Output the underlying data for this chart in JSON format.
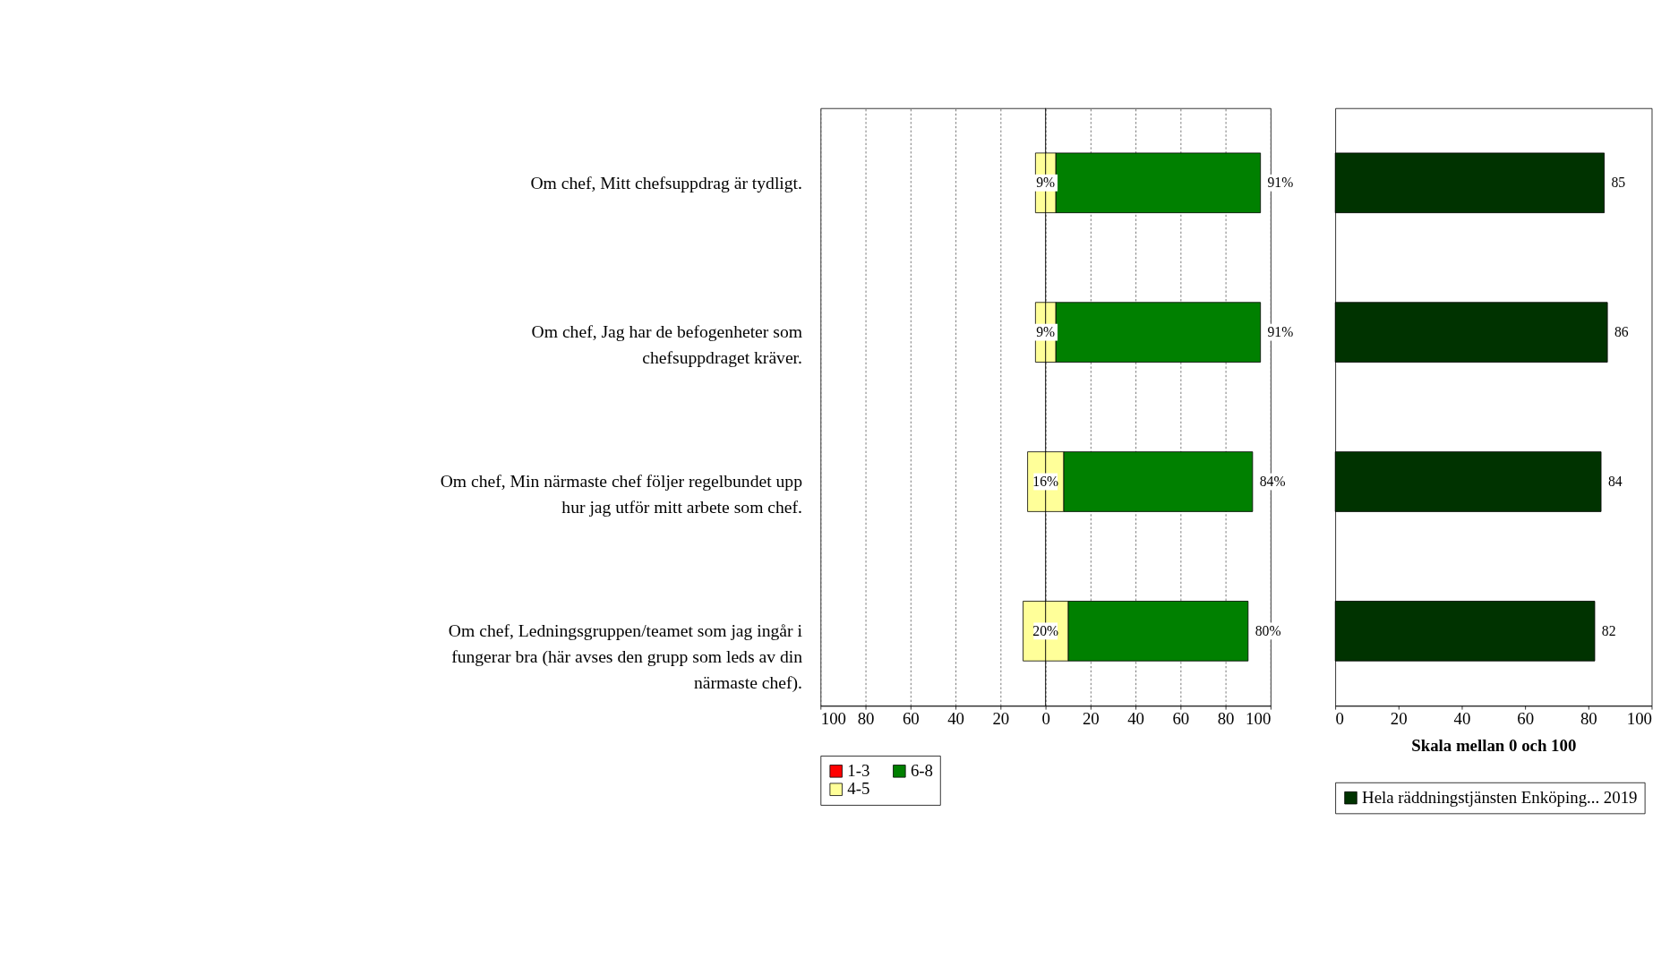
{
  "chart_data": [
    {
      "type": "bar",
      "orientation": "horizontal",
      "categories": [
        "Om chef, Mitt chefsuppdrag är tydligt.",
        "Om chef, Jag har de befogenheter som chefsuppdraget kräver.",
        "Om chef, Min närmaste chef följer regelbundet upp hur jag utför mitt arbete som chef.",
        "Om chef, Ledningsgruppen/teamet som jag ingår i fungerar bra (här avses den grupp som leds av din närmaste chef)."
      ],
      "series": [
        {
          "name": "1-3",
          "color": "#ff0000",
          "values": [
            null,
            null,
            null,
            null
          ]
        },
        {
          "name": "6-8",
          "color": "#008000",
          "values": [
            91,
            91,
            84,
            80
          ],
          "base": [
            4.5,
            4.5,
            8,
            10
          ],
          "value_labels": [
            "91%",
            "91%",
            "84%",
            "80%"
          ]
        },
        {
          "name": "4-5",
          "color": "#ffff99",
          "values": [
            9,
            9,
            16,
            20
          ],
          "base": [
            -4.5,
            -4.5,
            -8,
            -10
          ],
          "value_labels": [
            "9%",
            "9%",
            "16%",
            "20%"
          ]
        }
      ],
      "xlim": [
        -100,
        100
      ],
      "xticks": [
        {
          "value": -100,
          "label": "100"
        },
        {
          "value": -80,
          "label": "80"
        },
        {
          "value": -60,
          "label": "60"
        },
        {
          "value": -40,
          "label": "40"
        },
        {
          "value": -20,
          "label": "20"
        },
        0,
        20,
        40,
        60,
        80,
        100
      ],
      "grid": "x",
      "ref_lines": [
        {
          "axis": "x",
          "value": 0
        }
      ],
      "legend": "bottom"
    },
    {
      "type": "bar",
      "orientation": "horizontal",
      "categories": [
        null,
        null,
        null,
        null
      ],
      "series": [
        {
          "name": "Hela räddningstjänsten Enköping... 2019",
          "color": "#003300",
          "values": [
            85,
            86,
            84,
            82
          ]
        }
      ],
      "data_labels": true,
      "xlabel": "Skala mellan 0 och 100",
      "xlim": [
        0,
        100
      ],
      "xticks": [
        0,
        20,
        40,
        60,
        80,
        100
      ],
      "tick_labels": "x",
      "legend": "bottom"
    }
  ]
}
